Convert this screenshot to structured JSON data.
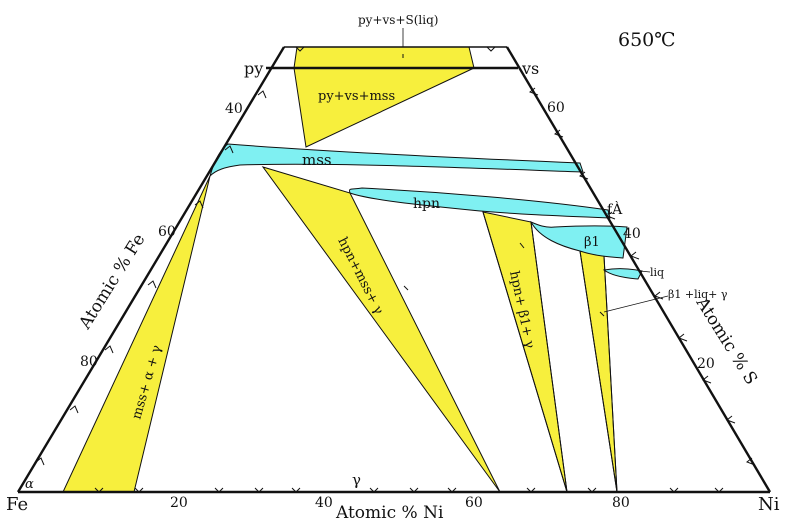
{
  "temperature": "650℃",
  "corners": {
    "fe": "Fe",
    "ni": "Ni",
    "py": "py",
    "vs": "vs"
  },
  "axes": {
    "bottom": "Atomic % Ni",
    "left": "Atomic % Fe",
    "right": "Atomic % S"
  },
  "ticks": {
    "bottom": [
      "20",
      "40",
      "60",
      "80"
    ],
    "left": [
      "40",
      "60",
      "80"
    ],
    "right": [
      "60",
      "40",
      "20"
    ]
  },
  "phases": {
    "top_liquid": "py+vs+S(liq)",
    "py_vs_mss": "py+vs+mss",
    "mss": "mss",
    "hpn": "hpn",
    "beta1": "β1",
    "liq": "liq",
    "beta1_liq_gamma": "β1 +liq+ γ",
    "hpn_mss_gamma": "hpn+mss+ γ",
    "hpn_beta1_gamma": "hpn+ β1+ γ",
    "mss_alpha_gamma": "mss+ α + γ",
    "alpha": "α",
    "gamma": "γ",
    "fa_label": "fÀ"
  },
  "colors": {
    "three_phase": "#f7ef3d",
    "single_phase": "#7ff0f2",
    "lines": "#111111"
  }
}
